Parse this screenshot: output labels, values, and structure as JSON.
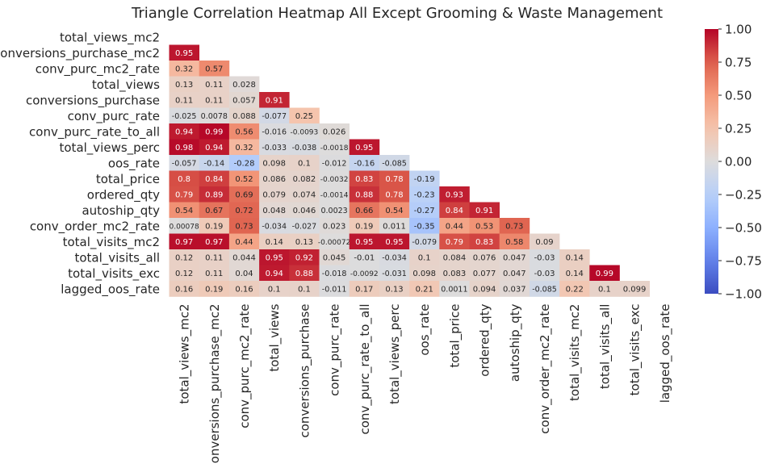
{
  "chart_data": {
    "type": "heatmap",
    "title": "Triangle Correlation Heatmap All Except Grooming & Waste Management",
    "variables": [
      "total_views_mc2",
      "conversions_purchase_mc2",
      "conv_purc_mc2_rate",
      "total_views",
      "conversions_purchase",
      "conv_purc_rate",
      "conv_purc_rate_to_all",
      "total_views_perc",
      "oos_rate",
      "total_price",
      "ordered_qty",
      "autoship_qty",
      "conv_order_mc2_rate",
      "total_visits_mc2",
      "total_visits_all",
      "total_visits_exc",
      "lagged_oos_rate"
    ],
    "lower_triangle": [
      [],
      [
        "0.95"
      ],
      [
        "0.32",
        "0.57"
      ],
      [
        "0.13",
        "0.11",
        "0.028"
      ],
      [
        "0.11",
        "0.11",
        "0.057",
        "0.91"
      ],
      [
        "-0.025",
        "0.0078",
        "0.088",
        "-0.077",
        "0.25"
      ],
      [
        "0.94",
        "0.99",
        "0.56",
        "-0.016",
        "-0.0093",
        "0.026"
      ],
      [
        "0.98",
        "0.94",
        "0.32",
        "-0.033",
        "-0.038",
        "-0.0018",
        "0.95"
      ],
      [
        "-0.057",
        "-0.14",
        "-0.28",
        "0.098",
        "0.1",
        "-0.012",
        "-0.16",
        "-0.085"
      ],
      [
        "0.8",
        "0.84",
        "0.52",
        "0.086",
        "0.082",
        "-0.0032",
        "0.83",
        "0.78",
        "-0.19"
      ],
      [
        "0.79",
        "0.89",
        "0.69",
        "0.079",
        "0.074",
        "-0.0014",
        "0.88",
        "0.78",
        "-0.23",
        "0.93"
      ],
      [
        "0.54",
        "0.67",
        "0.72",
        "0.048",
        "0.046",
        "0.0023",
        "0.66",
        "0.54",
        "-0.27",
        "0.84",
        "0.91"
      ],
      [
        "0.00078",
        "0.19",
        "0.73",
        "-0.034",
        "-0.027",
        "0.023",
        "0.19",
        "0.011",
        "-0.35",
        "0.44",
        "0.53",
        "0.73"
      ],
      [
        "0.97",
        "0.97",
        "0.44",
        "0.14",
        "0.13",
        "-0.00072",
        "0.95",
        "0.95",
        "-0.079",
        "0.79",
        "0.83",
        "0.58",
        "0.09"
      ],
      [
        "0.12",
        "0.11",
        "0.044",
        "0.95",
        "0.92",
        "0.045",
        "-0.01",
        "-0.034",
        "0.1",
        "0.084",
        "0.076",
        "0.047",
        "-0.03",
        "0.14"
      ],
      [
        "0.12",
        "0.11",
        "0.04",
        "0.94",
        "0.88",
        "-0.018",
        "-0.0092",
        "-0.031",
        "0.098",
        "0.083",
        "0.077",
        "0.047",
        "-0.03",
        "0.14",
        "0.99"
      ],
      [
        "0.16",
        "0.19",
        "0.16",
        "0.1",
        "0.1",
        "-0.011",
        "0.17",
        "0.13",
        "0.21",
        "0.0011",
        "0.094",
        "0.037",
        "-0.085",
        "0.22",
        "0.1",
        "0.099"
      ]
    ],
    "colorbar": {
      "colormap": "coolwarm",
      "range": [
        -1,
        1
      ],
      "ticks": [
        "1.00",
        "0.75",
        "0.50",
        "0.25",
        "0.00",
        "−0.25",
        "−0.50",
        "−0.75",
        "−1.00"
      ]
    }
  }
}
